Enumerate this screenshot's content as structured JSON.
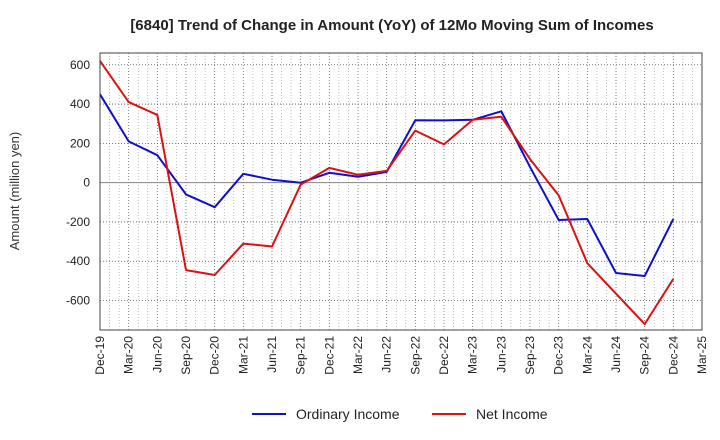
{
  "chart_data": {
    "type": "line",
    "title": "[6840]  Trend of Change in Amount (YoY) of 12Mo Moving Sum of Incomes",
    "xlabel": "",
    "ylabel": "Amount (million yen)",
    "ylim": [
      -750,
      660
    ],
    "yticks": [
      600,
      400,
      200,
      0,
      -200,
      -400,
      -600
    ],
    "grid": true,
    "legend_position": "bottom",
    "categories": [
      "Dec-19",
      "Mar-20",
      "Jun-20",
      "Sep-20",
      "Dec-20",
      "Mar-21",
      "Jun-21",
      "Sep-21",
      "Dec-21",
      "Mar-22",
      "Jun-22",
      "Sep-22",
      "Dec-22",
      "Mar-23",
      "Jun-23",
      "Sep-23",
      "Dec-23",
      "Mar-24",
      "Jun-24",
      "Sep-24",
      "Dec-24",
      "Mar-25"
    ],
    "series": [
      {
        "name": "Ordinary Income",
        "color": "#1010cc",
        "values": [
          450,
          210,
          140,
          -60,
          -125,
          45,
          15,
          0,
          50,
          30,
          55,
          318,
          317,
          320,
          363,
          80,
          -190,
          -185,
          -460,
          -475,
          -185,
          null
        ]
      },
      {
        "name": "Net Income",
        "color": "#dd1111",
        "values": [
          620,
          410,
          345,
          -445,
          -470,
          -310,
          -325,
          -10,
          75,
          40,
          60,
          265,
          195,
          320,
          335,
          120,
          -65,
          -410,
          -565,
          -720,
          -490,
          null
        ]
      }
    ]
  }
}
